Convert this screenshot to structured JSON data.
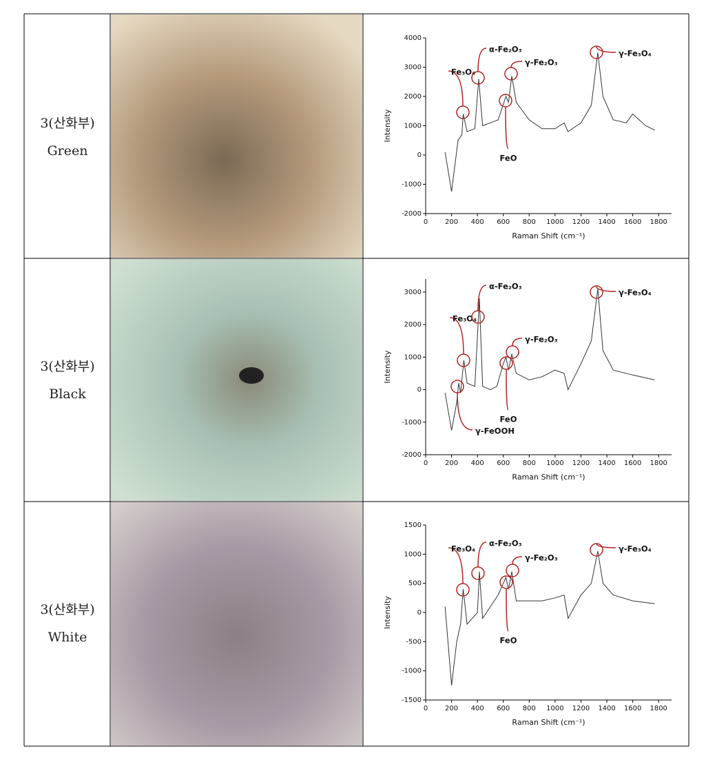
{
  "table": {
    "rows": [
      {
        "label_line1": "3(산화부)",
        "label_line2": "Green"
      },
      {
        "label_line1": "3(산화부)",
        "label_line2": "Black"
      },
      {
        "label_line1": "3(산화부)",
        "label_line2": "White"
      }
    ]
  },
  "chart_data": [
    {
      "type": "line",
      "xlabel": "Raman Shift (cm⁻¹)",
      "ylabel": "Intensity",
      "color": "#333333",
      "xlim": [
        0,
        1900
      ],
      "ylim": [
        -2000,
        4000
      ],
      "xticks": [
        0,
        200,
        400,
        600,
        800,
        1000,
        1200,
        1400,
        1600,
        1800
      ],
      "yticks": [
        -2000,
        -1000,
        0,
        1000,
        2000,
        3000,
        4000
      ],
      "x": [
        150,
        200,
        250,
        280,
        290,
        320,
        380,
        410,
        440,
        500,
        560,
        620,
        640,
        665,
        700,
        800,
        900,
        1000,
        1070,
        1100,
        1200,
        1280,
        1330,
        1370,
        1450,
        1550,
        1600,
        1700,
        1770
      ],
      "values": [
        100,
        -1250,
        500,
        700,
        1400,
        800,
        900,
        2600,
        1000,
        1100,
        1200,
        2000,
        1800,
        2700,
        1800,
        1200,
        900,
        900,
        1100,
        800,
        1100,
        1700,
        3500,
        2000,
        1200,
        1100,
        1400,
        1000,
        850
      ],
      "annotations": [
        {
          "text": "Fe₃O₄"
        },
        {
          "text": "α-Fe₂O₃"
        },
        {
          "text": "γ-Fe₂O₃"
        },
        {
          "text": "γ-Fe₃O₄"
        },
        {
          "text": "FeO"
        }
      ]
    },
    {
      "type": "line",
      "xlabel": "Raman Shift (cm⁻¹)",
      "ylabel": "Intensity",
      "color": "#333333",
      "xlim": [
        0,
        1900
      ],
      "ylim": [
        -2000,
        3400
      ],
      "xticks": [
        0,
        200,
        400,
        600,
        800,
        1000,
        1200,
        1400,
        1600,
        1800
      ],
      "yticks": [
        -2000,
        -1000,
        0,
        1000,
        2000,
        3000
      ],
      "x": [
        150,
        200,
        240,
        255,
        270,
        295,
        320,
        380,
        415,
        440,
        500,
        550,
        600,
        620,
        640,
        665,
        700,
        800,
        900,
        1000,
        1070,
        1100,
        1200,
        1280,
        1330,
        1370,
        1450,
        1600,
        1770
      ],
      "values": [
        -100,
        -1250,
        -400,
        200,
        -100,
        900,
        200,
        100,
        2800,
        100,
        0,
        100,
        800,
        1000,
        600,
        1100,
        500,
        300,
        400,
        600,
        500,
        0,
        800,
        1500,
        3100,
        1200,
        600,
        450,
        300
      ],
      "annotations": [
        {
          "text": "Fe₃O₄"
        },
        {
          "text": "α-Fe₂O₃"
        },
        {
          "text": "γ-Fe₂O₃"
        },
        {
          "text": "γ-Fe₃O₄"
        },
        {
          "text": "FeO"
        },
        {
          "text": "γ-FeOOH"
        }
      ]
    },
    {
      "type": "line",
      "xlabel": "Raman Shift (cm⁻¹)",
      "ylabel": "Intensity",
      "color": "#333333",
      "xlim": [
        0,
        1900
      ],
      "ylim": [
        -1500,
        1500
      ],
      "xticks": [
        0,
        200,
        400,
        600,
        800,
        1000,
        1200,
        1400,
        1600,
        1800
      ],
      "yticks": [
        -1500,
        -1000,
        -500,
        0,
        500,
        1000,
        1500
      ],
      "x": [
        150,
        200,
        240,
        270,
        290,
        320,
        400,
        415,
        440,
        500,
        560,
        620,
        640,
        665,
        700,
        800,
        900,
        1000,
        1070,
        1100,
        1200,
        1280,
        1330,
        1370,
        1450,
        1600,
        1770
      ],
      "values": [
        100,
        -1250,
        -500,
        -200,
        400,
        -200,
        0,
        700,
        -100,
        100,
        300,
        600,
        400,
        700,
        200,
        200,
        200,
        250,
        300,
        -100,
        300,
        500,
        1050,
        500,
        300,
        200,
        150
      ],
      "annotations": [
        {
          "text": "Fe₃O₄"
        },
        {
          "text": "α-Fe₂O₃"
        },
        {
          "text": "γ-Fe₂O₃"
        },
        {
          "text": "γ-Fe₃O₄"
        },
        {
          "text": "FeO"
        }
      ]
    }
  ]
}
